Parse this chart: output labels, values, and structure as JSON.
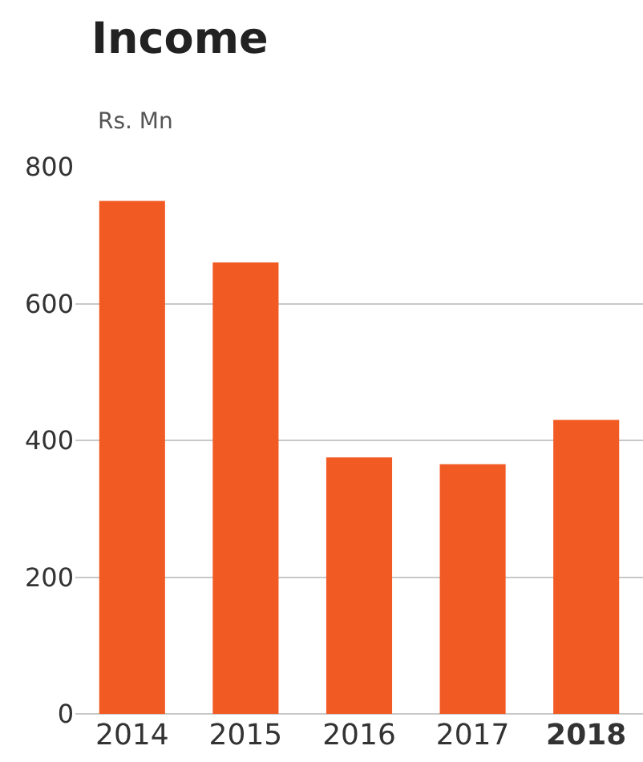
{
  "chart_data": {
    "type": "bar",
    "title": "Income",
    "subtitle": "Rs. Mn",
    "categories": [
      "2014",
      "2015",
      "2016",
      "2017",
      "2018"
    ],
    "values": [
      750,
      660,
      375,
      365,
      430
    ],
    "color": "#f15a22",
    "ylim": [
      0,
      800
    ],
    "yticks": [
      0,
      200,
      400,
      600,
      800
    ],
    "grid": "y",
    "legend": false
  }
}
